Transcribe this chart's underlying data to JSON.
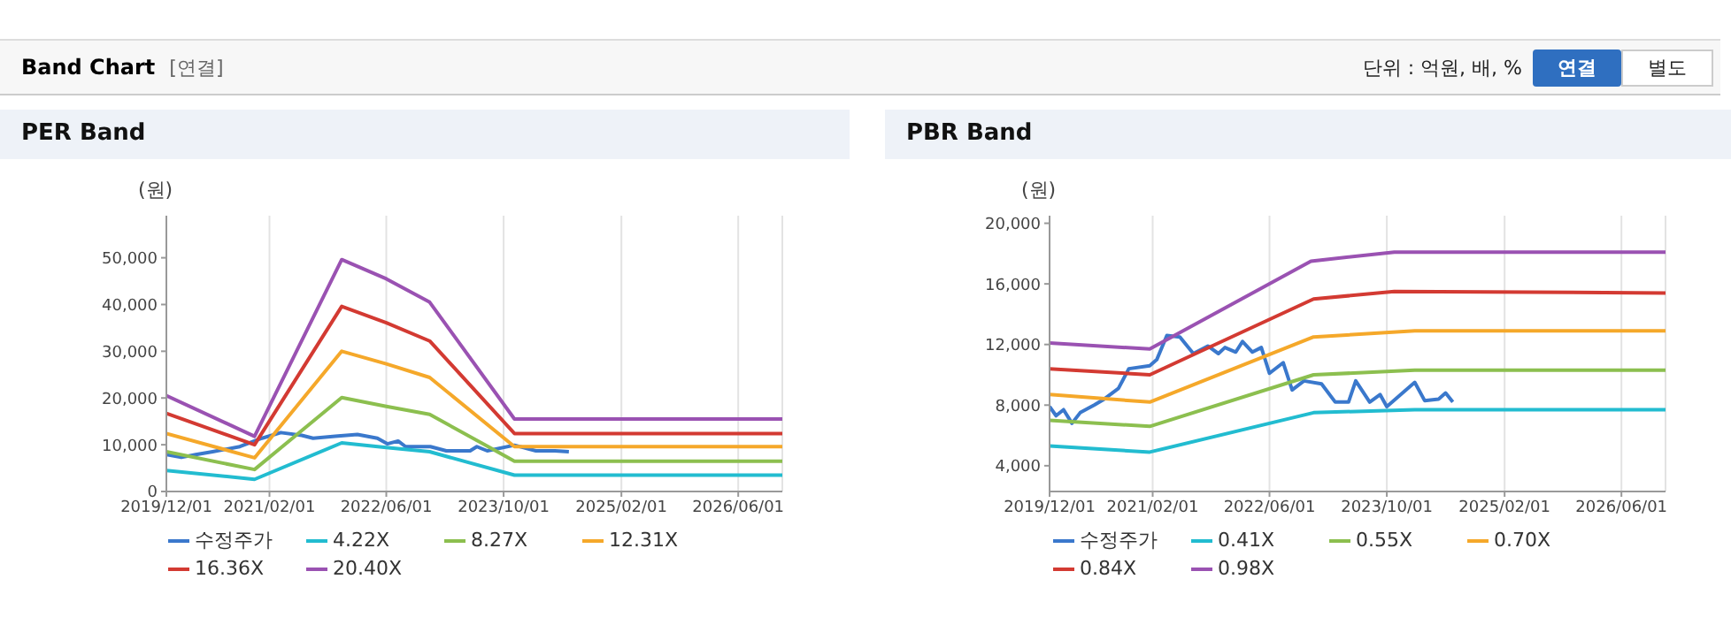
{
  "chart_data": [
    {
      "type": "line",
      "title": "PER Band",
      "ylabel": "(원)",
      "annotations": [
        "Band Chart",
        "[연결]",
        "단위 : 억원, 배, %",
        "연결",
        "별도"
      ],
      "xlim": [
        "2019-12-01",
        "2026-12-01"
      ],
      "xticks": [
        {
          "value": "2019-12-01",
          "label": "2019/12/01"
        },
        {
          "value": "2021-02-01",
          "label": "2021/02/01"
        },
        {
          "value": "2022-06-01",
          "label": "2022/06/01"
        },
        {
          "value": "2023-10-01",
          "label": "2023/10/01"
        },
        {
          "value": "2025-02-01",
          "label": "2025/02/01"
        },
        {
          "value": "2026-06-01",
          "label": "2026/06/01"
        }
      ],
      "ylim": [
        0,
        59000
      ],
      "yticks": [
        0,
        {
          "value": 10000,
          "label": "10,000"
        },
        {
          "value": 20000,
          "label": "20,000"
        },
        {
          "value": 30000,
          "label": "30,000"
        },
        {
          "value": 40000,
          "label": "40,000"
        },
        {
          "value": 50000,
          "label": "50,000"
        }
      ],
      "grid": "x",
      "legend": "bottom",
      "marker": "none",
      "line_style": "solid",
      "series": [
        {
          "name": "수정주가",
          "color": "#3a78cc",
          "x": [
            "2019-12-01",
            "2020-02-01",
            "2020-04-01",
            "2020-06-10",
            "2020-10-01",
            "2021-01-01",
            "2021-03-20",
            "2021-06-15",
            "2021-08-01",
            "2021-11-01",
            "2022-02-01",
            "2022-04-25",
            "2022-06-05",
            "2022-07-20",
            "2022-08-20",
            "2022-12-01",
            "2023-02-05",
            "2023-05-15",
            "2023-06-12",
            "2023-07-25",
            "2023-11-15",
            "2024-02-12",
            "2024-05-01",
            "2024-06-28"
          ],
          "values": [
            7900,
            7300,
            7900,
            8500,
            9600,
            11400,
            12600,
            12000,
            11400,
            11800,
            12200,
            11400,
            10200,
            10800,
            9600,
            9600,
            8700,
            8700,
            9600,
            8700,
            9900,
            8700,
            8700,
            8500
          ]
        },
        {
          "name": "4.22X",
          "color": "#22bcd0",
          "x": [
            "2019-12-01",
            "2020-12-01",
            "2021-11-28",
            "2022-06-01",
            "2022-11-28",
            "2023-11-15",
            "2026-12-01"
          ],
          "values": [
            4500,
            2600,
            10400,
            9400,
            8500,
            3500,
            3500
          ]
        },
        {
          "name": "8.27X",
          "color": "#8cbf4f",
          "x": [
            "2019-12-01",
            "2020-12-01",
            "2021-11-28",
            "2022-06-01",
            "2022-11-28",
            "2023-11-15",
            "2026-12-01"
          ],
          "values": [
            8500,
            4700,
            20100,
            18200,
            16500,
            6500,
            6500
          ]
        },
        {
          "name": "12.31X",
          "color": "#f5a82a",
          "x": [
            "2019-12-01",
            "2020-12-01",
            "2021-11-28",
            "2022-06-01",
            "2022-11-28",
            "2023-11-15",
            "2026-12-01"
          ],
          "values": [
            12400,
            7200,
            30000,
            27300,
            24400,
            9600,
            9600
          ]
        },
        {
          "name": "16.36X",
          "color": "#d33a32",
          "x": [
            "2019-12-01",
            "2020-12-01",
            "2021-11-28",
            "2022-06-01",
            "2022-11-28",
            "2023-11-15",
            "2026-12-01"
          ],
          "values": [
            16700,
            10000,
            39600,
            36100,
            32200,
            12400,
            12400
          ]
        },
        {
          "name": "20.40X",
          "color": "#9a52b2",
          "x": [
            "2019-12-01",
            "2020-12-01",
            "2021-11-28",
            "2022-06-01",
            "2022-11-28",
            "2023-11-15",
            "2026-12-01"
          ],
          "values": [
            20500,
            11800,
            49600,
            45500,
            40500,
            15500,
            15500
          ]
        }
      ]
    },
    {
      "type": "line",
      "title": "PBR Band",
      "ylabel": "(원)",
      "xlim": [
        "2019-12-01",
        "2026-12-01"
      ],
      "xticks": [
        {
          "value": "2019-12-01",
          "label": "2019/12/01"
        },
        {
          "value": "2021-02-01",
          "label": "2021/02/01"
        },
        {
          "value": "2022-06-01",
          "label": "2022/06/01"
        },
        {
          "value": "2023-10-01",
          "label": "2023/10/01"
        },
        {
          "value": "2025-02-01",
          "label": "2025/02/01"
        },
        {
          "value": "2026-06-01",
          "label": "2026/06/01"
        }
      ],
      "ylim": [
        2300,
        20500
      ],
      "yticks": [
        {
          "value": 4000,
          "label": "4,000"
        },
        {
          "value": 8000,
          "label": "8,000"
        },
        {
          "value": 12000,
          "label": "12,000"
        },
        {
          "value": 16000,
          "label": "16,000"
        },
        {
          "value": 20000,
          "label": "20,000"
        }
      ],
      "grid": "x",
      "legend": "bottom",
      "marker": "none",
      "line_style": "solid",
      "series": [
        {
          "name": "수정주가",
          "color": "#3a78cc",
          "x": [
            "2019-12-01",
            "2019-12-28",
            "2020-01-28",
            "2020-03-03",
            "2020-04-06",
            "2020-06-03",
            "2020-07-15",
            "2020-09-12",
            "2020-10-25",
            "2021-01-20",
            "2021-02-18",
            "2021-04-01",
            "2021-05-25",
            "2021-07-20",
            "2021-09-18",
            "2021-11-01",
            "2021-11-28",
            "2022-01-12",
            "2022-02-09",
            "2022-03-22",
            "2022-04-28",
            "2022-06-01",
            "2022-07-28",
            "2022-09-03",
            "2022-10-22",
            "2023-01-03",
            "2023-03-01",
            "2023-04-25",
            "2023-05-25",
            "2023-07-22",
            "2023-09-03",
            "2023-10-01",
            "2024-01-25",
            "2024-03-06",
            "2024-05-03",
            "2024-06-01",
            "2024-07-01"
          ],
          "values": [
            7900,
            7300,
            7700,
            6800,
            7500,
            8000,
            8400,
            9100,
            10400,
            10600,
            11000,
            12600,
            12500,
            11400,
            11900,
            11400,
            11800,
            11500,
            12200,
            11500,
            11800,
            10100,
            10800,
            9000,
            9600,
            9400,
            8200,
            8200,
            9600,
            8200,
            8700,
            7900,
            9500,
            8300,
            8400,
            8800,
            8200
          ]
        },
        {
          "name": "0.41X",
          "color": "#22bcd0",
          "x": [
            "2019-12-01",
            "2021-01-20",
            "2022-12-01",
            "2024-01-25",
            "2026-12-01"
          ],
          "values": [
            5300,
            4900,
            7500,
            7700,
            7700
          ]
        },
        {
          "name": "0.55X",
          "color": "#8cbf4f",
          "x": [
            "2019-12-01",
            "2021-01-20",
            "2022-12-01",
            "2024-01-25",
            "2026-12-01"
          ],
          "values": [
            7000,
            6600,
            10000,
            10300,
            10300
          ]
        },
        {
          "name": "0.70X",
          "color": "#f5a82a",
          "x": [
            "2019-12-01",
            "2021-01-20",
            "2022-12-01",
            "2024-01-25",
            "2026-12-01"
          ],
          "values": [
            8700,
            8200,
            12500,
            12900,
            12900
          ]
        },
        {
          "name": "0.84X",
          "color": "#d33a32",
          "x": [
            "2019-12-01",
            "2021-01-20",
            "2022-12-01",
            "2023-11-01",
            "2026-12-01"
          ],
          "values": [
            10400,
            10000,
            15000,
            15500,
            15400
          ]
        },
        {
          "name": "0.98X",
          "color": "#9a52b2",
          "x": [
            "2019-12-01",
            "2021-01-20",
            "2022-11-20",
            "2023-11-01",
            "2026-12-01"
          ],
          "values": [
            12100,
            11700,
            17500,
            18100,
            18100
          ]
        }
      ]
    }
  ]
}
